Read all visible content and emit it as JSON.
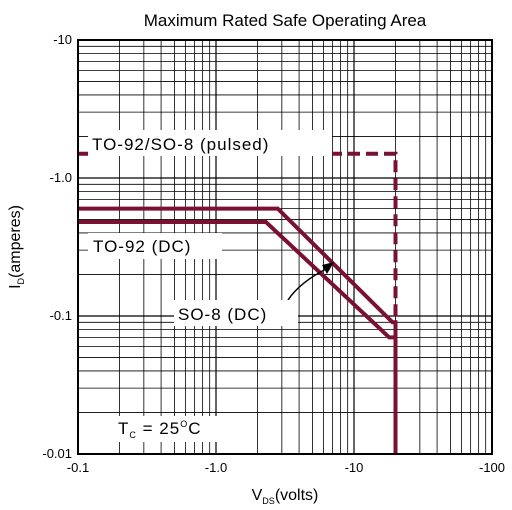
{
  "chart_data": {
    "type": "line",
    "title": "Maximum Rated Safe Operating Area",
    "xlabel": {
      "main": "V",
      "sub": "DS",
      "rest": "(volts)"
    },
    "ylabel": {
      "main": "I",
      "sub": "D",
      "rest": "(amperes)"
    },
    "xscale": "log",
    "yscale": "log",
    "xlim": [
      0.1,
      100
    ],
    "ylim": [
      0.01,
      10
    ],
    "x_tick_labels": [
      "-0.1",
      "-1.0",
      "-10",
      "-100"
    ],
    "y_tick_labels": [
      "-0.01",
      "-0.1",
      "-1.0",
      "-10"
    ],
    "grid": true,
    "color": "#7a1032",
    "series": [
      {
        "name": "TO-92/SO-8 (pulsed)",
        "style": "dashed",
        "x": [
          0.1,
          20,
          20
        ],
        "y": [
          1.5,
          1.5,
          0.01
        ]
      },
      {
        "name": "TO-92 (DC)",
        "style": "solid",
        "x": [
          0.1,
          2.8,
          19,
          20,
          20
        ],
        "y": [
          0.6,
          0.6,
          0.09,
          0.09,
          0.01
        ]
      },
      {
        "name": "SO-8 (DC)",
        "style": "solid",
        "x": [
          0.1,
          2.3,
          18,
          20,
          20
        ],
        "y": [
          0.48,
          0.48,
          0.07,
          0.07,
          0.01
        ]
      }
    ],
    "annotations": {
      "pulsed_label": "TO-92/SO-8 (pulsed)",
      "to92_label": "TO-92 (DC)",
      "so8_label": "SO-8 (DC)",
      "tc_main": "T",
      "tc_sub": "C",
      "tc_eq": " = 25",
      "tc_sup": "O",
      "tc_unit": "C"
    }
  }
}
